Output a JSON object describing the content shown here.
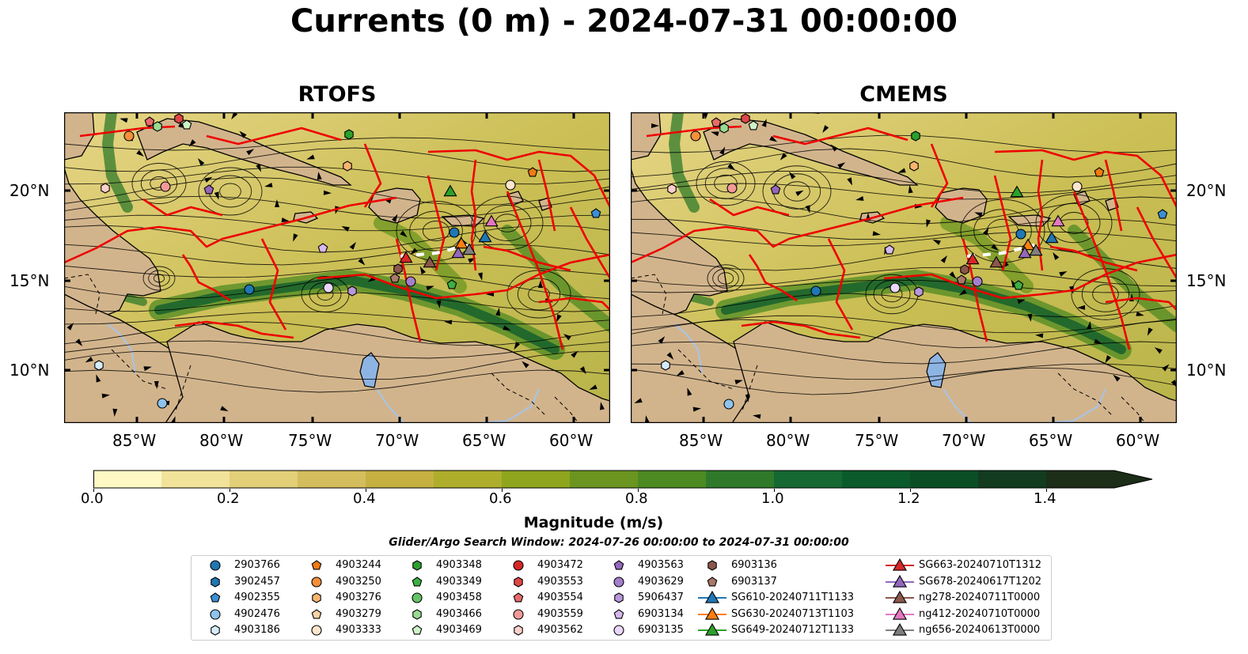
{
  "title": "Currents (0 m) - 2024-07-31 00:00:00",
  "panels": [
    {
      "title": "RTOFS"
    },
    {
      "title": "CMEMS"
    }
  ],
  "axes": {
    "lon_labels": [
      "85°W",
      "80°W",
      "75°W",
      "70°W",
      "65°W",
      "60°W"
    ],
    "lat_labels": [
      "20°N",
      "15°N",
      "10°N"
    ]
  },
  "colorbar": {
    "label": "Magnitude (m/s)",
    "ticks": [
      "0.0",
      "0.2",
      "0.4",
      "0.6",
      "0.8",
      "1.0",
      "1.2",
      "1.4"
    ],
    "vmin": 0.0,
    "vmax": 1.5,
    "extend": "max",
    "colors": [
      "#fdf8c4",
      "#f2e39a",
      "#e2cf78",
      "#d4bd5c",
      "#c6b042",
      "#aeae2c",
      "#8fa51e",
      "#6b9520",
      "#4d8a22",
      "#2f7a2a",
      "#156832",
      "#0b5a2c",
      "#0a4e26",
      "#123b20",
      "#1c2d18"
    ]
  },
  "search_window": "Glider/Argo Search Window: 2024-07-26 00:00:00 to 2024-07-31 00:00:00",
  "legend": {
    "columns": [
      [
        {
          "label": "2903766",
          "marker": "circle",
          "color": "#1f77b4"
        },
        {
          "label": "3902457",
          "marker": "hexagon",
          "color": "#1f77b4"
        },
        {
          "label": "4902355",
          "marker": "pentagon",
          "color": "#3c8fd4"
        },
        {
          "label": "4902476",
          "marker": "circle",
          "color": "#8fc3ec"
        },
        {
          "label": "4903186",
          "marker": "hexagon",
          "color": "#d6ecfb"
        }
      ],
      [
        {
          "label": "4903244",
          "marker": "pentagon",
          "color": "#f07b10"
        },
        {
          "label": "4903250",
          "marker": "circle",
          "color": "#f4903a"
        },
        {
          "label": "4903276",
          "marker": "hexagon",
          "color": "#f7b46f"
        },
        {
          "label": "4903279",
          "marker": "pentagon",
          "color": "#fbd2a4"
        },
        {
          "label": "4903333",
          "marker": "circle",
          "color": "#fde6cc"
        }
      ],
      [
        {
          "label": "4903348",
          "marker": "hexagon",
          "color": "#2ca02c"
        },
        {
          "label": "4903349",
          "marker": "pentagon",
          "color": "#3cb043"
        },
        {
          "label": "4903458",
          "marker": "circle",
          "color": "#65c365"
        },
        {
          "label": "4903466",
          "marker": "hexagon",
          "color": "#98dc90"
        },
        {
          "label": "4903469",
          "marker": "pentagon",
          "color": "#cff3c7"
        }
      ],
      [
        {
          "label": "4903472",
          "marker": "circle",
          "color": "#d62728"
        },
        {
          "label": "4903553",
          "marker": "hexagon",
          "color": "#e04646"
        },
        {
          "label": "4903554",
          "marker": "pentagon",
          "color": "#e86a6a"
        },
        {
          "label": "4903559",
          "marker": "circle",
          "color": "#f29a97"
        },
        {
          "label": "4903562",
          "marker": "hexagon",
          "color": "#fbd0cc"
        }
      ],
      [
        {
          "label": "4903563",
          "marker": "pentagon",
          "color": "#9467bd"
        },
        {
          "label": "4903629",
          "marker": "circle",
          "color": "#a47fcb"
        },
        {
          "label": "5906437",
          "marker": "hexagon",
          "color": "#b897dc"
        },
        {
          "label": "6903134",
          "marker": "pentagon",
          "color": "#d5b9ef"
        },
        {
          "label": "6903135",
          "marker": "circle",
          "color": "#ead6fb"
        }
      ],
      [
        {
          "label": "6903136",
          "marker": "hexagon",
          "color": "#8c564b"
        },
        {
          "label": "6903137",
          "marker": "pentagon",
          "color": "#a9786b"
        },
        {
          "label": "SG610-20240711T1133",
          "marker": "triangle",
          "color": "#1f77b4"
        },
        {
          "label": "SG630-20240713T1103",
          "marker": "triangle",
          "color": "#ff7f0e"
        },
        {
          "label": "SG649-20240712T1133",
          "marker": "triangle",
          "color": "#2ca02c"
        }
      ],
      [
        {
          "label": "SG663-20240710T1312",
          "marker": "triangle",
          "color": "#d62728"
        },
        {
          "label": "SG678-20240617T1202",
          "marker": "triangle",
          "color": "#9467bd"
        },
        {
          "label": "ng278-20240711T0000",
          "marker": "triangle",
          "color": "#8c564b"
        },
        {
          "label": "ng412-20240710T0000",
          "marker": "triangle",
          "color": "#e377c2"
        },
        {
          "label": "ng656-20240613T0000",
          "marker": "triangle",
          "color": "#7f7f7f"
        }
      ]
    ]
  }
}
